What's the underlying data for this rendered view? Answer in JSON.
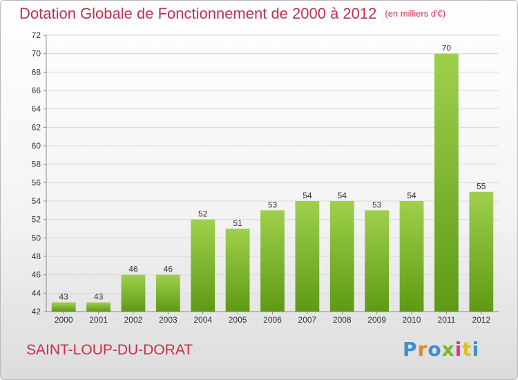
{
  "header": {
    "title": "Dotation Globale de Fonctionnement de 2000 à 2012",
    "unit": "(en milliers d'€)"
  },
  "footer": {
    "commune": "SAINT-LOUP-DU-DORAT",
    "logo_text": "Proxiti"
  },
  "colors": {
    "title": "#c1314e",
    "bar_top": "#9fd04c",
    "bar_bottom": "#5e9a14",
    "grid": "#d8d8d8"
  },
  "chart_data": {
    "type": "bar",
    "title": "Dotation Globale de Fonctionnement de 2000 à 2012",
    "unit": "(en milliers d'€)",
    "categories": [
      "2000",
      "2001",
      "2002",
      "2003",
      "2004",
      "2005",
      "2006",
      "2007",
      "2008",
      "2009",
      "2010",
      "2011",
      "2012"
    ],
    "values": [
      43,
      43,
      46,
      46,
      52,
      51,
      53,
      54,
      54,
      53,
      54,
      70,
      55
    ],
    "ylim": [
      42,
      72
    ],
    "yticks": [
      42,
      44,
      46,
      48,
      50,
      52,
      54,
      56,
      58,
      60,
      62,
      64,
      66,
      68,
      70,
      72
    ],
    "grid": true,
    "data_labels": true
  }
}
